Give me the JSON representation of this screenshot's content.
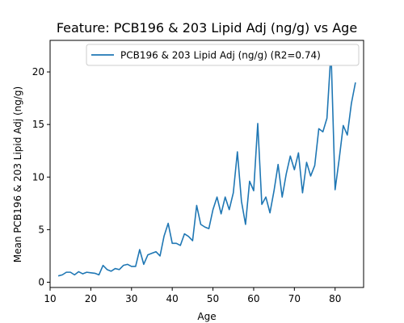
{
  "chart_data": {
    "type": "line",
    "title": "Feature: PCB196 & 203 Lipid Adj (ng/g) vs Age",
    "xlabel": "Age",
    "ylabel": "Mean PCB196 & 203 Lipid Adj (ng/g)",
    "xlim": [
      10,
      87
    ],
    "ylim": [
      -0.5,
      23
    ],
    "xticks": [
      10,
      20,
      30,
      40,
      50,
      60,
      70,
      80
    ],
    "yticks": [
      0,
      5,
      10,
      15,
      20
    ],
    "legend_position": "top-right",
    "grid": false,
    "series": [
      {
        "name": "PCB196 & 203 Lipid Adj (ng/g) (R2=0.74)",
        "color": "#1f77b4",
        "x": [
          12,
          13,
          14,
          15,
          16,
          17,
          18,
          19,
          20,
          21,
          22,
          23,
          24,
          25,
          26,
          27,
          28,
          29,
          30,
          31,
          32,
          33,
          34,
          35,
          36,
          37,
          38,
          39,
          40,
          41,
          42,
          43,
          44,
          45,
          46,
          47,
          48,
          49,
          50,
          51,
          52,
          53,
          54,
          55,
          56,
          57,
          58,
          59,
          60,
          61,
          62,
          63,
          64,
          65,
          66,
          67,
          68,
          69,
          70,
          71,
          72,
          73,
          74,
          75,
          76,
          77,
          78,
          79,
          80,
          81,
          82,
          83,
          84,
          85
        ],
        "y": [
          0.6,
          0.7,
          0.95,
          0.95,
          0.7,
          1.0,
          0.8,
          0.95,
          0.9,
          0.85,
          0.7,
          1.6,
          1.2,
          1.05,
          1.3,
          1.2,
          1.6,
          1.7,
          1.5,
          1.5,
          3.1,
          1.7,
          2.6,
          2.75,
          2.9,
          2.5,
          4.4,
          5.6,
          3.7,
          3.7,
          3.5,
          4.6,
          4.35,
          3.95,
          7.3,
          5.5,
          5.25,
          5.1,
          6.9,
          8.1,
          6.5,
          8.1,
          6.9,
          8.5,
          12.4,
          7.7,
          5.5,
          9.6,
          8.7,
          15.1,
          7.4,
          8.1,
          6.6,
          8.7,
          11.2,
          8.1,
          10.3,
          12.0,
          10.7,
          12.3,
          8.5,
          11.4,
          10.1,
          11.1,
          14.6,
          14.3,
          15.6,
          22.0,
          8.8,
          11.7,
          14.9,
          14.0,
          17.0,
          19.0
        ]
      }
    ]
  }
}
